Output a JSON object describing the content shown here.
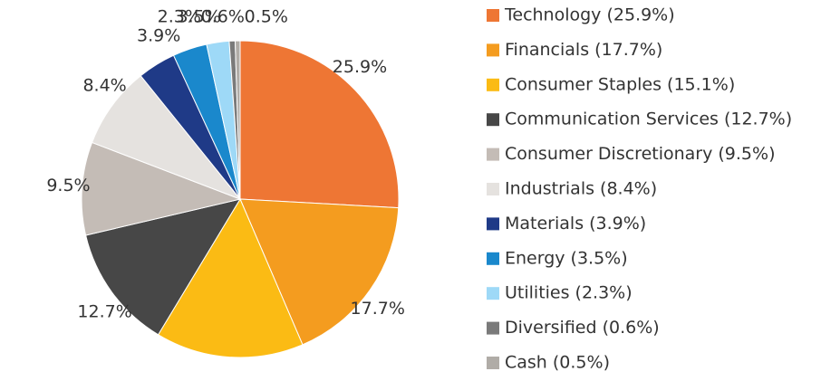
{
  "chart_data": {
    "type": "pie",
    "labels": [
      "Technology (25.9%)",
      "Financials (17.7%)",
      "Consumer Staples (15.1%)",
      "Communication Services (12.7%)",
      "Consumer Discretionary (9.5%)",
      "Industrials (8.4%)",
      "Materials (3.9%)",
      "Energy (3.5%)",
      "Utilities (2.3%)",
      "Diversified (0.6%)",
      "Cash (0.5%)"
    ],
    "values": [
      25.9,
      17.7,
      15.1,
      12.7,
      9.5,
      8.4,
      3.9,
      3.5,
      2.3,
      0.6,
      0.5
    ],
    "value_labels": [
      "25.9%",
      "17.7%",
      "15.1%",
      "12.7%",
      "9.5%",
      "8.4%",
      "3.9%",
      "3.5%",
      "2.3%",
      "0.6%",
      "0.5%"
    ],
    "colors": [
      "#ee7634",
      "#f49c1f",
      "#fbbb14",
      "#474747",
      "#c4bcb6",
      "#e5e2df",
      "#1f3a87",
      "#1a88cc",
      "#9ed9f7",
      "#7a7a7a",
      "#b0aca7"
    ],
    "legend": "right"
  }
}
